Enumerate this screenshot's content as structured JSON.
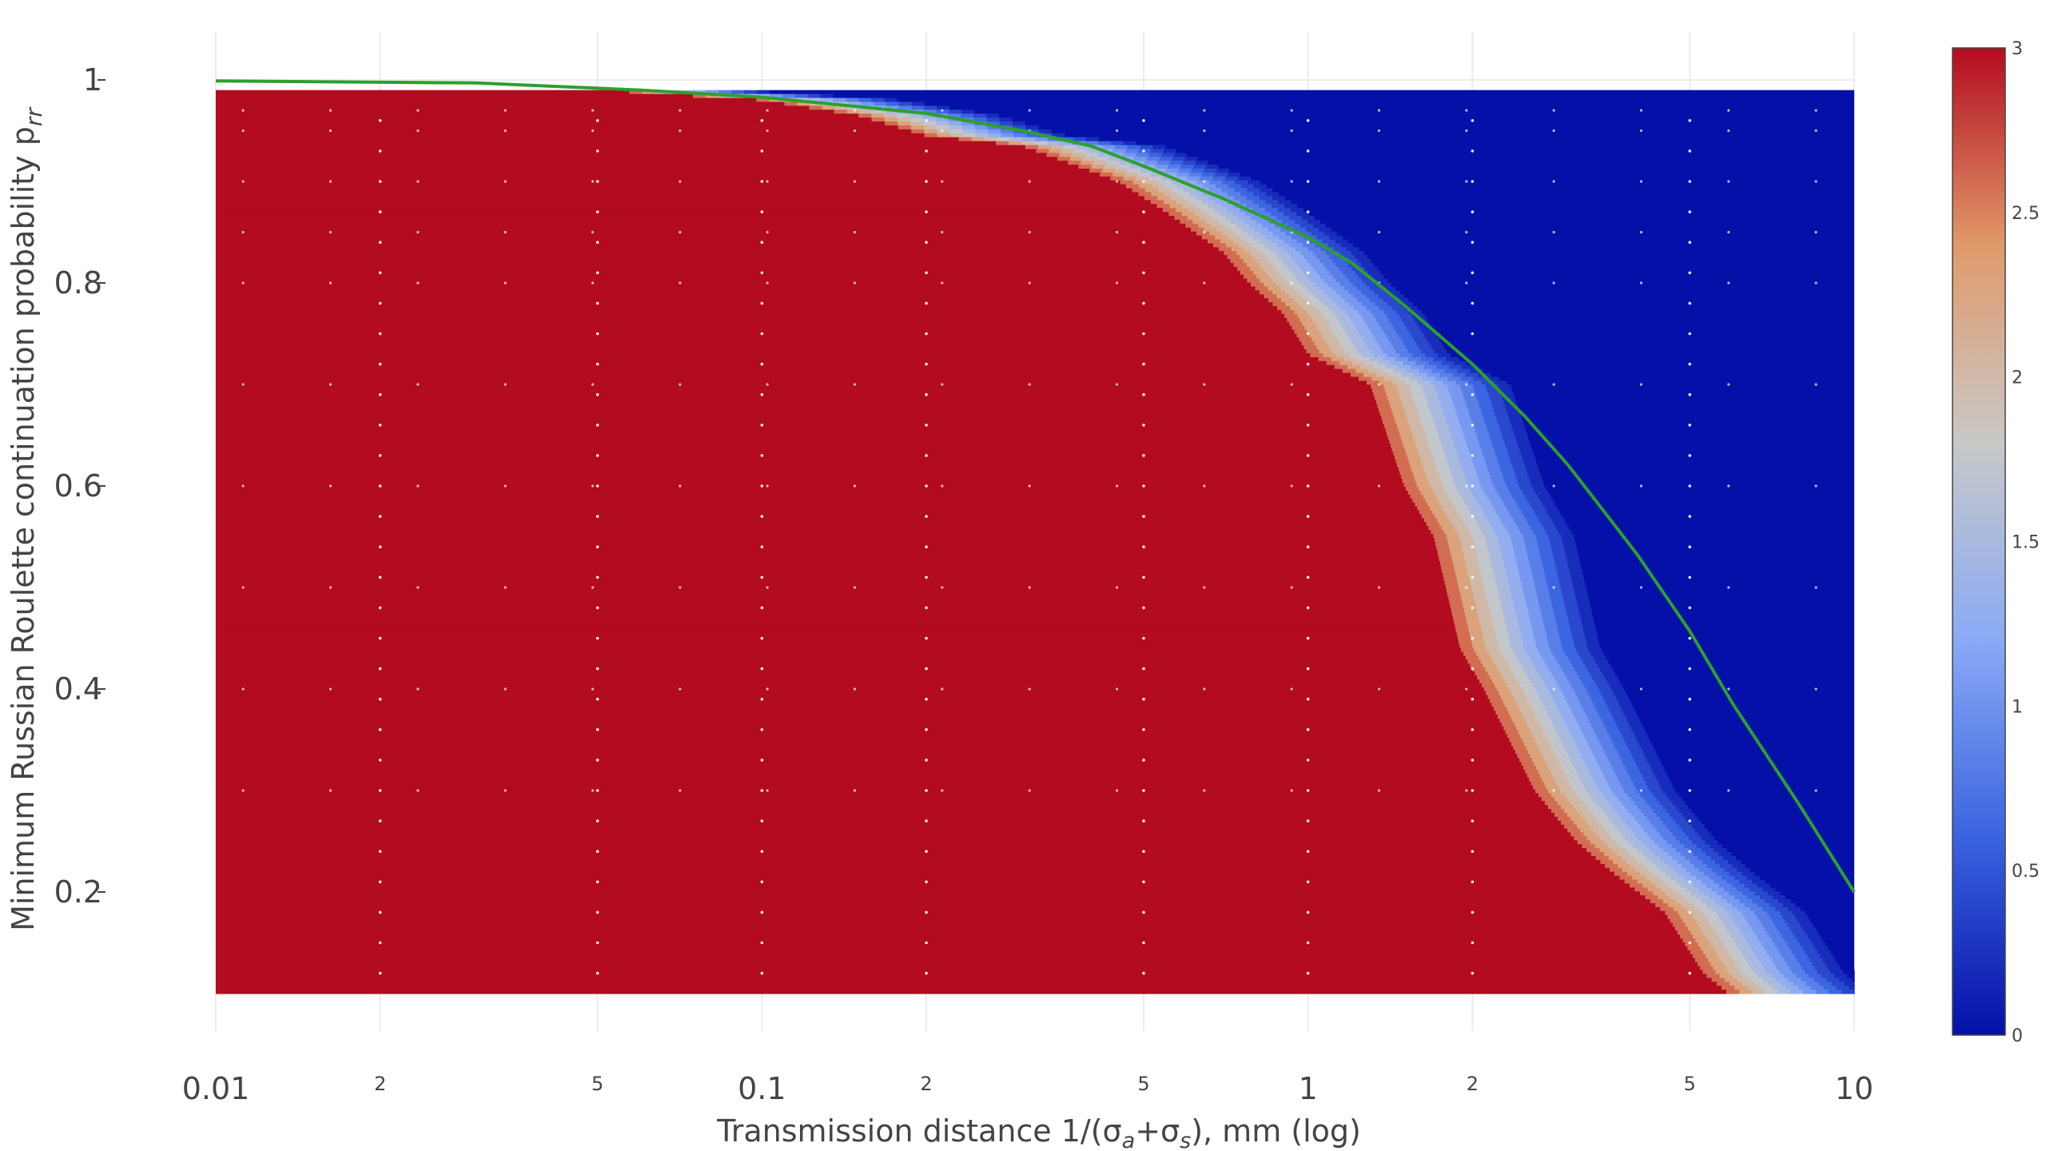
{
  "chart_data": {
    "type": "heatmap",
    "x_axis": {
      "title_parts": [
        "Transmission distance 1/(σ",
        "a",
        "+σ",
        "s",
        "), mm (log)"
      ],
      "scale": "log",
      "range": [
        0.01,
        10
      ],
      "major_ticks": [
        {
          "value": 0.01,
          "label": "0.01"
        },
        {
          "value": 0.1,
          "label": "0.1"
        },
        {
          "value": 1,
          "label": "1"
        },
        {
          "value": 10,
          "label": "10"
        }
      ],
      "minor_ticks": [
        {
          "value": 0.02,
          "label": "2"
        },
        {
          "value": 0.05,
          "label": "5"
        },
        {
          "value": 0.2,
          "label": "2"
        },
        {
          "value": 0.5,
          "label": "5"
        },
        {
          "value": 2,
          "label": "2"
        },
        {
          "value": 5,
          "label": "5"
        }
      ]
    },
    "y_axis": {
      "title_parts": [
        "Minimum Russian Roulette continuation probability p",
        "rr"
      ],
      "range": [
        0.1,
        0.99
      ],
      "ticks": [
        {
          "value": 0.2,
          "label": "0.2"
        },
        {
          "value": 0.4,
          "label": "0.4"
        },
        {
          "value": 0.6,
          "label": "0.6"
        },
        {
          "value": 0.8,
          "label": "0.8"
        },
        {
          "value": 1,
          "label": "1"
        }
      ]
    },
    "colorbar": {
      "range": [
        0,
        3
      ],
      "ticks": [
        {
          "value": 3,
          "label": "3"
        },
        {
          "value": 2.5,
          "label": "2.5"
        },
        {
          "value": 2,
          "label": "2"
        },
        {
          "value": 1.5,
          "label": "1.5"
        },
        {
          "value": 1,
          "label": "1"
        },
        {
          "value": 0.5,
          "label": "0.5"
        },
        {
          "value": 0,
          "label": "0"
        }
      ],
      "colorscale": [
        "#0510a8",
        "#3a63e0",
        "#8aaaf5",
        "#c8c8c8",
        "#e09a6a",
        "#b30b1f"
      ]
    },
    "heatmap": {
      "value_above_boundary": 0,
      "value_below_boundary": 3,
      "boundary": [
        {
          "x": 0.01,
          "y": 0.99
        },
        {
          "x": 0.05,
          "y": 0.99
        },
        {
          "x": 0.1,
          "y": 0.98
        },
        {
          "x": 0.15,
          "y": 0.965
        },
        {
          "x": 0.2,
          "y": 0.945
        },
        {
          "x": 0.3,
          "y": 0.935
        },
        {
          "x": 0.45,
          "y": 0.9
        },
        {
          "x": 0.55,
          "y": 0.87
        },
        {
          "x": 0.7,
          "y": 0.83
        },
        {
          "x": 0.78,
          "y": 0.8
        },
        {
          "x": 0.9,
          "y": 0.77
        },
        {
          "x": 1.0,
          "y": 0.73
        },
        {
          "x": 1.3,
          "y": 0.7
        },
        {
          "x": 1.5,
          "y": 0.6
        },
        {
          "x": 1.7,
          "y": 0.55
        },
        {
          "x": 1.9,
          "y": 0.44
        },
        {
          "x": 2.1,
          "y": 0.4
        },
        {
          "x": 2.6,
          "y": 0.3
        },
        {
          "x": 3.1,
          "y": 0.25
        },
        {
          "x": 3.6,
          "y": 0.22
        },
        {
          "x": 4.5,
          "y": 0.18
        },
        {
          "x": 5.3,
          "y": 0.12
        },
        {
          "x": 5.9,
          "y": 0.1
        }
      ],
      "transition_width_decades": 0.28
    },
    "series": [
      {
        "type": "line",
        "color": "#2ca02c",
        "x": [
          0.01,
          0.03,
          0.06,
          0.1,
          0.2,
          0.3,
          0.4,
          0.5,
          0.7,
          1.0,
          1.2,
          1.5,
          2.0,
          2.5,
          3.0,
          4.0,
          5.0,
          6.0,
          8.0,
          10.0
        ],
        "y": [
          0.999,
          0.997,
          0.99,
          0.983,
          0.967,
          0.95,
          0.935,
          0.915,
          0.883,
          0.845,
          0.82,
          0.778,
          0.72,
          0.668,
          0.62,
          0.533,
          0.457,
          0.385,
          0.283,
          0.2
        ]
      }
    ],
    "grid": true,
    "grid_dots": true
  }
}
